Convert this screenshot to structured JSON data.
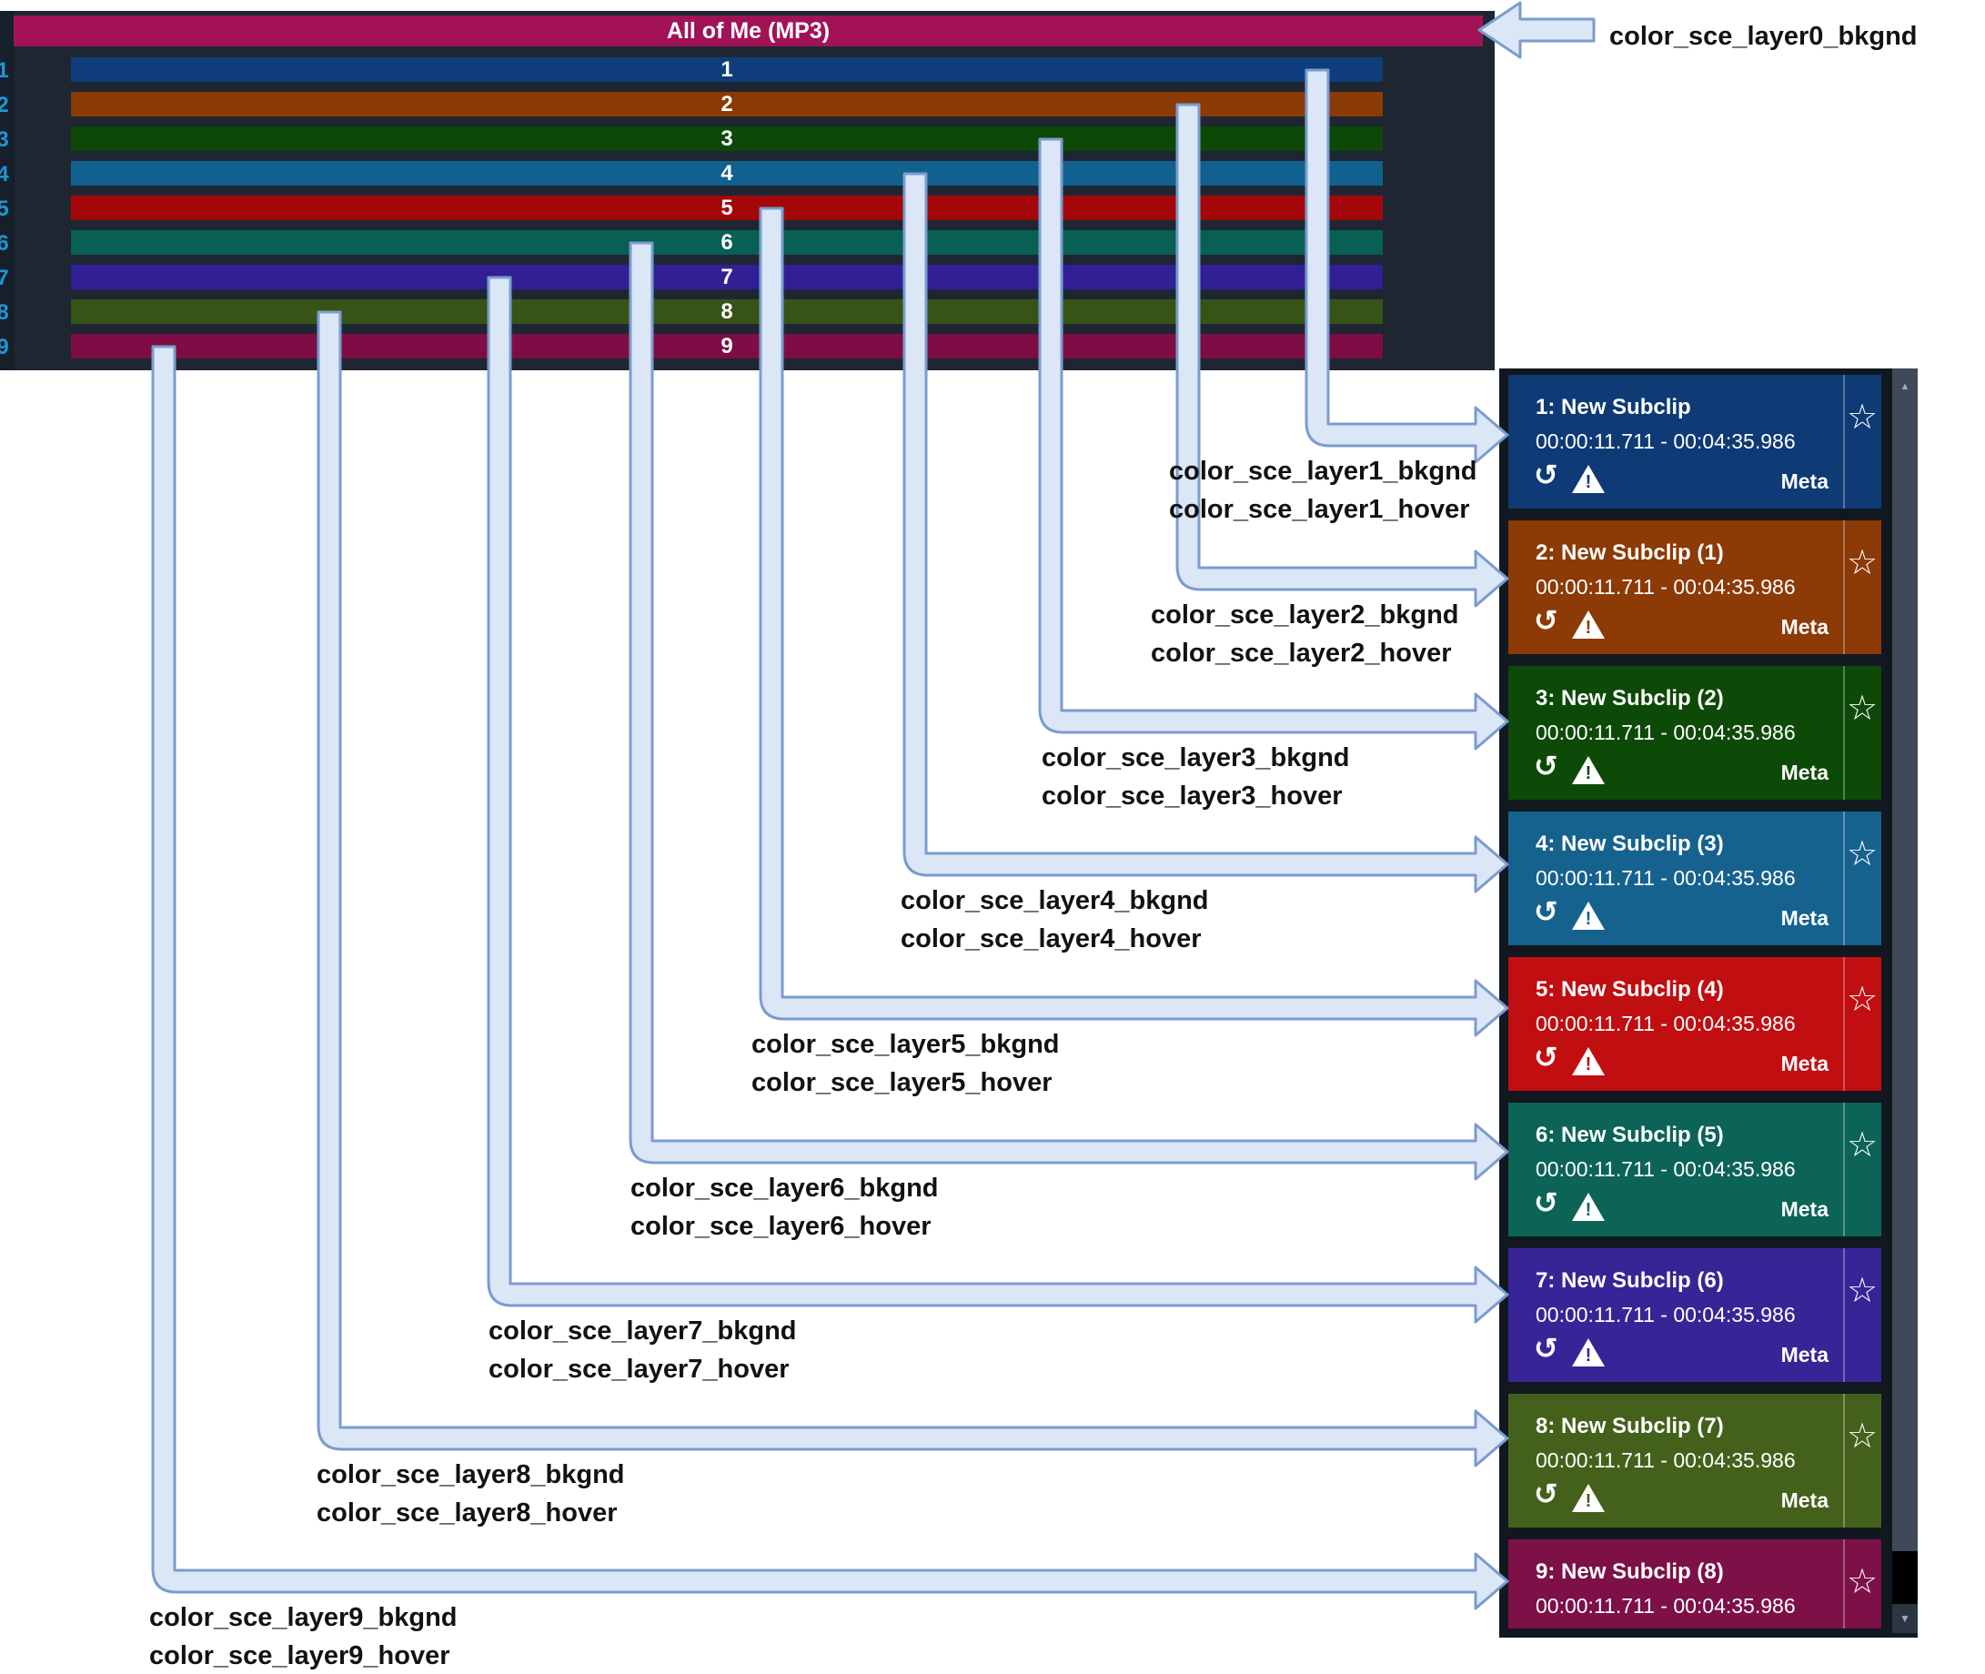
{
  "timeline": {
    "title": "All of Me (MP3)",
    "title_bg": "#a21257",
    "panel_bg": "#1e2731",
    "gutter_bg": "#16202a",
    "track_number_color": "#2095d5",
    "tracks": [
      {
        "number": "1",
        "color": "#0e3c7c"
      },
      {
        "number": "2",
        "color": "#8b3a05"
      },
      {
        "number": "3",
        "color": "#0d4806"
      },
      {
        "number": "4",
        "color": "#11618f"
      },
      {
        "number": "5",
        "color": "#a30709"
      },
      {
        "number": "6",
        "color": "#076053"
      },
      {
        "number": "7",
        "color": "#311f96"
      },
      {
        "number": "8",
        "color": "#375417"
      },
      {
        "number": "9",
        "color": "#7e0d45"
      }
    ]
  },
  "subclips": {
    "panel_bg": "#12181f",
    "timestamp": "00:00:11.711 - 00:04:35.986",
    "meta_label": "Meta",
    "star_icon": "☆",
    "undo_icon": "↺",
    "warning_icon": "!",
    "scrollbar": {
      "thumb_color": "#3e4a59",
      "track_color": "#000000",
      "button_bg": "#2c3642",
      "icon_color": "#9fabb9",
      "up_icon": "▲",
      "down_icon": "▼"
    },
    "items": [
      {
        "title": "1: New Subclip",
        "color": "#0e3a75",
        "footer": true
      },
      {
        "title": "2: New Subclip (1)",
        "color": "#8c3a06",
        "footer": true
      },
      {
        "title": "3: New Subclip (2)",
        "color": "#0d4a07",
        "footer": true
      },
      {
        "title": "4: New Subclip (3)",
        "color": "#16628f",
        "footer": true
      },
      {
        "title": "5: New Subclip (4)",
        "color": "#c10e11",
        "footer": true
      },
      {
        "title": "6: New Subclip (5)",
        "color": "#0c6456",
        "footer": true
      },
      {
        "title": "7: New Subclip (6)",
        "color": "#372597",
        "footer": true
      },
      {
        "title": "8: New Subclip (7)",
        "color": "#44611c",
        "footer": true
      },
      {
        "title": "9: New Subclip (8)",
        "color": "#7d1046",
        "footer": false
      }
    ]
  },
  "annotations": {
    "arrow_fill": "#dbe7f7",
    "arrow_stroke": "#7a9cce",
    "label_color": "#121212",
    "layer0_label": "color_sce_layer0_bkgnd",
    "layers": [
      {
        "bkgnd": "color_sce_layer1_bkgnd",
        "hover": "color_sce_layer1_hover"
      },
      {
        "bkgnd": "color_sce_layer2_bkgnd",
        "hover": "color_sce_layer2_hover"
      },
      {
        "bkgnd": "color_sce_layer3_bkgnd",
        "hover": "color_sce_layer3_hover"
      },
      {
        "bkgnd": "color_sce_layer4_bkgnd",
        "hover": "color_sce_layer4_hover"
      },
      {
        "bkgnd": "color_sce_layer5_bkgnd",
        "hover": "color_sce_layer5_hover"
      },
      {
        "bkgnd": "color_sce_layer6_bkgnd",
        "hover": "color_sce_layer6_hover"
      },
      {
        "bkgnd": "color_sce_layer7_bkgnd",
        "hover": "color_sce_layer7_hover"
      },
      {
        "bkgnd": "color_sce_layer8_bkgnd",
        "hover": "color_sce_layer8_hover"
      },
      {
        "bkgnd": "color_sce_layer9_bkgnd",
        "hover": "color_sce_layer9_hover"
      }
    ]
  }
}
